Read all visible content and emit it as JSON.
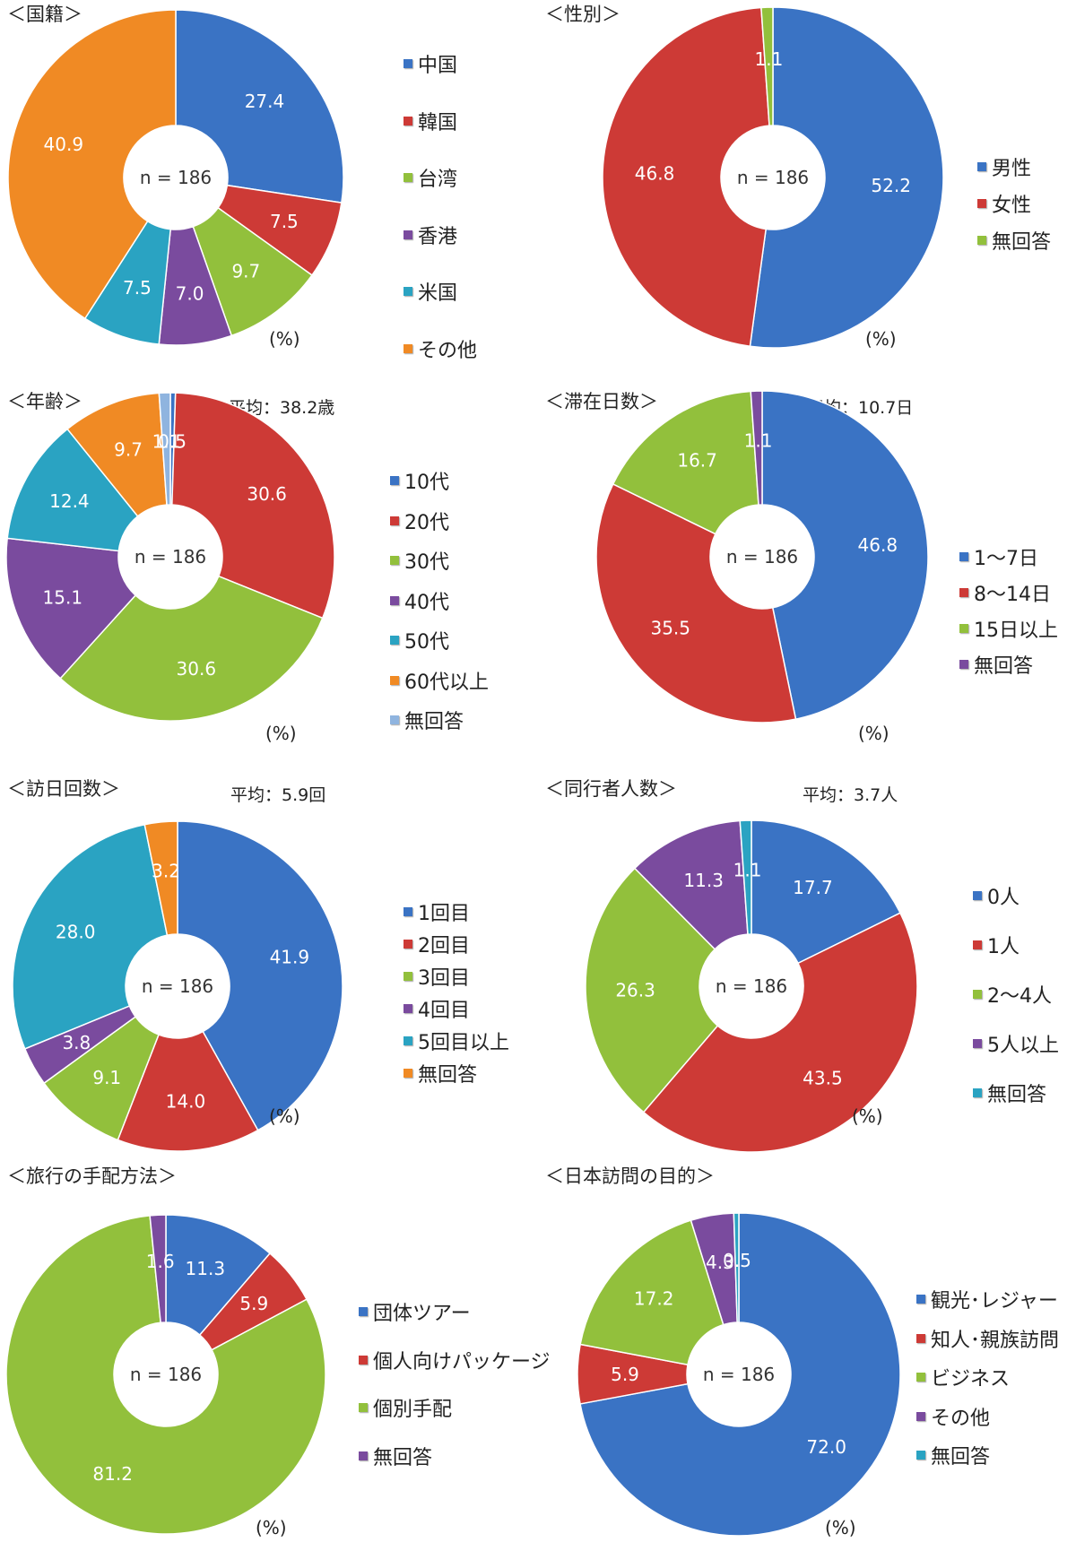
{
  "colors": {
    "blue": "#3a73c4",
    "red": "#cd3a36",
    "green": "#92c03c",
    "purple": "#7a4b9e",
    "cyan": "#2aa3c2",
    "orange": "#f08a24",
    "lightblue": "#8fb4df"
  },
  "common": {
    "n_label": "n = 186",
    "pct_unit": "(%)"
  },
  "panels": [
    {
      "id": "nationality",
      "title": "＜国籍＞",
      "average": ""
    },
    {
      "id": "gender",
      "title": "＜性別＞",
      "average": ""
    },
    {
      "id": "age",
      "title": "＜年齢＞",
      "average": "平均：38.2歳"
    },
    {
      "id": "stay",
      "title": "＜滞在日数＞",
      "average": "平均：10.7日"
    },
    {
      "id": "visits",
      "title": "＜訪日回数＞",
      "average": "平均：5.9回"
    },
    {
      "id": "companions",
      "title": "＜同行者人数＞",
      "average": "平均：3.7人"
    },
    {
      "id": "arrangement",
      "title": "＜旅行の手配方法＞",
      "average": ""
    },
    {
      "id": "purpose",
      "title": "＜日本訪問の目的＞",
      "average": ""
    }
  ],
  "chart_data": [
    {
      "type": "pie",
      "donut": true,
      "title": "＜国籍＞",
      "n": "n = 186",
      "unit": "(%)",
      "legend": "right",
      "categories": [
        "中国",
        "韓国",
        "台湾",
        "香港",
        "米国",
        "その他"
      ],
      "values": [
        27.4,
        7.5,
        9.7,
        7.0,
        7.5,
        40.9
      ],
      "labels": [
        "27.4",
        "7.5",
        "9.7",
        "7.0",
        "7.5",
        "40.9"
      ],
      "colors": [
        "blue",
        "red",
        "green",
        "purple",
        "cyan",
        "orange"
      ]
    },
    {
      "type": "pie",
      "donut": true,
      "title": "＜性別＞",
      "n": "n = 186",
      "unit": "(%)",
      "legend": "right",
      "categories": [
        "男性",
        "女性",
        "無回答"
      ],
      "values": [
        52.2,
        46.8,
        1.1
      ],
      "labels": [
        "52.2",
        "46.8",
        "1.1"
      ],
      "colors": [
        "blue",
        "red",
        "green"
      ]
    },
    {
      "type": "pie",
      "donut": true,
      "title": "＜年齢＞",
      "n": "n = 186",
      "unit": "(%)",
      "legend": "right",
      "categories": [
        "10代",
        "20代",
        "30代",
        "40代",
        "50代",
        "60代以上",
        "無回答"
      ],
      "values": [
        0.5,
        30.6,
        30.6,
        15.1,
        12.4,
        9.7,
        1.1
      ],
      "labels": [
        "0.5",
        "30.6",
        "30.6",
        "15.1",
        "12.4",
        "9.7",
        "1.1"
      ],
      "colors": [
        "blue",
        "red",
        "green",
        "purple",
        "cyan",
        "orange",
        "lightblue"
      ]
    },
    {
      "type": "pie",
      "donut": true,
      "title": "＜滞在日数＞",
      "n": "n = 186",
      "unit": "(%)",
      "legend": "right",
      "categories": [
        "1～7日",
        "8～14日",
        "15日以上",
        "無回答"
      ],
      "values": [
        46.8,
        35.5,
        16.7,
        1.1
      ],
      "labels": [
        "46.8",
        "35.5",
        "16.7",
        "1.1"
      ],
      "colors": [
        "blue",
        "red",
        "green",
        "purple"
      ]
    },
    {
      "type": "pie",
      "donut": true,
      "title": "＜訪日回数＞",
      "n": "n = 186",
      "unit": "(%)",
      "legend": "right",
      "categories": [
        "1回目",
        "2回目",
        "3回目",
        "4回目",
        "5回目以上",
        "無回答"
      ],
      "values": [
        41.9,
        14.0,
        9.1,
        3.8,
        28.0,
        3.2
      ],
      "labels": [
        "41.9",
        "14.0",
        "9.1",
        "3.8",
        "28.0",
        "3.2"
      ],
      "colors": [
        "blue",
        "red",
        "green",
        "purple",
        "cyan",
        "orange"
      ]
    },
    {
      "type": "pie",
      "donut": true,
      "title": "＜同行者人数＞",
      "n": "n = 186",
      "unit": "(%)",
      "legend": "right",
      "categories": [
        "0人",
        "1人",
        "2～4人",
        "5人以上",
        "無回答"
      ],
      "values": [
        17.7,
        43.5,
        26.3,
        11.3,
        1.1
      ],
      "labels": [
        "17.7",
        "43.5",
        "26.3",
        "11.3",
        "1.1"
      ],
      "colors": [
        "blue",
        "red",
        "green",
        "purple",
        "cyan"
      ]
    },
    {
      "type": "pie",
      "donut": true,
      "title": "＜旅行の手配方法＞",
      "n": "n = 186",
      "unit": "(%)",
      "legend": "right",
      "categories": [
        "団体ツアー",
        "個人向けパッケージ",
        "個別手配",
        "無回答"
      ],
      "values": [
        11.3,
        5.9,
        81.2,
        1.6
      ],
      "labels": [
        "11.3",
        "5.9",
        "81.2",
        "1.6"
      ],
      "colors": [
        "blue",
        "red",
        "green",
        "purple"
      ]
    },
    {
      "type": "pie",
      "donut": true,
      "title": "＜日本訪問の目的＞",
      "n": "n = 186",
      "unit": "(%)",
      "legend": "right",
      "categories": [
        "観光･レジャー",
        "知人･親族訪問",
        "ビジネス",
        "その他",
        "無回答"
      ],
      "values": [
        72.0,
        5.9,
        17.2,
        4.3,
        0.5
      ],
      "labels": [
        "72.0",
        "5.9",
        "17.2",
        "4.3",
        "0.5"
      ],
      "colors": [
        "blue",
        "red",
        "green",
        "purple",
        "cyan"
      ]
    }
  ]
}
